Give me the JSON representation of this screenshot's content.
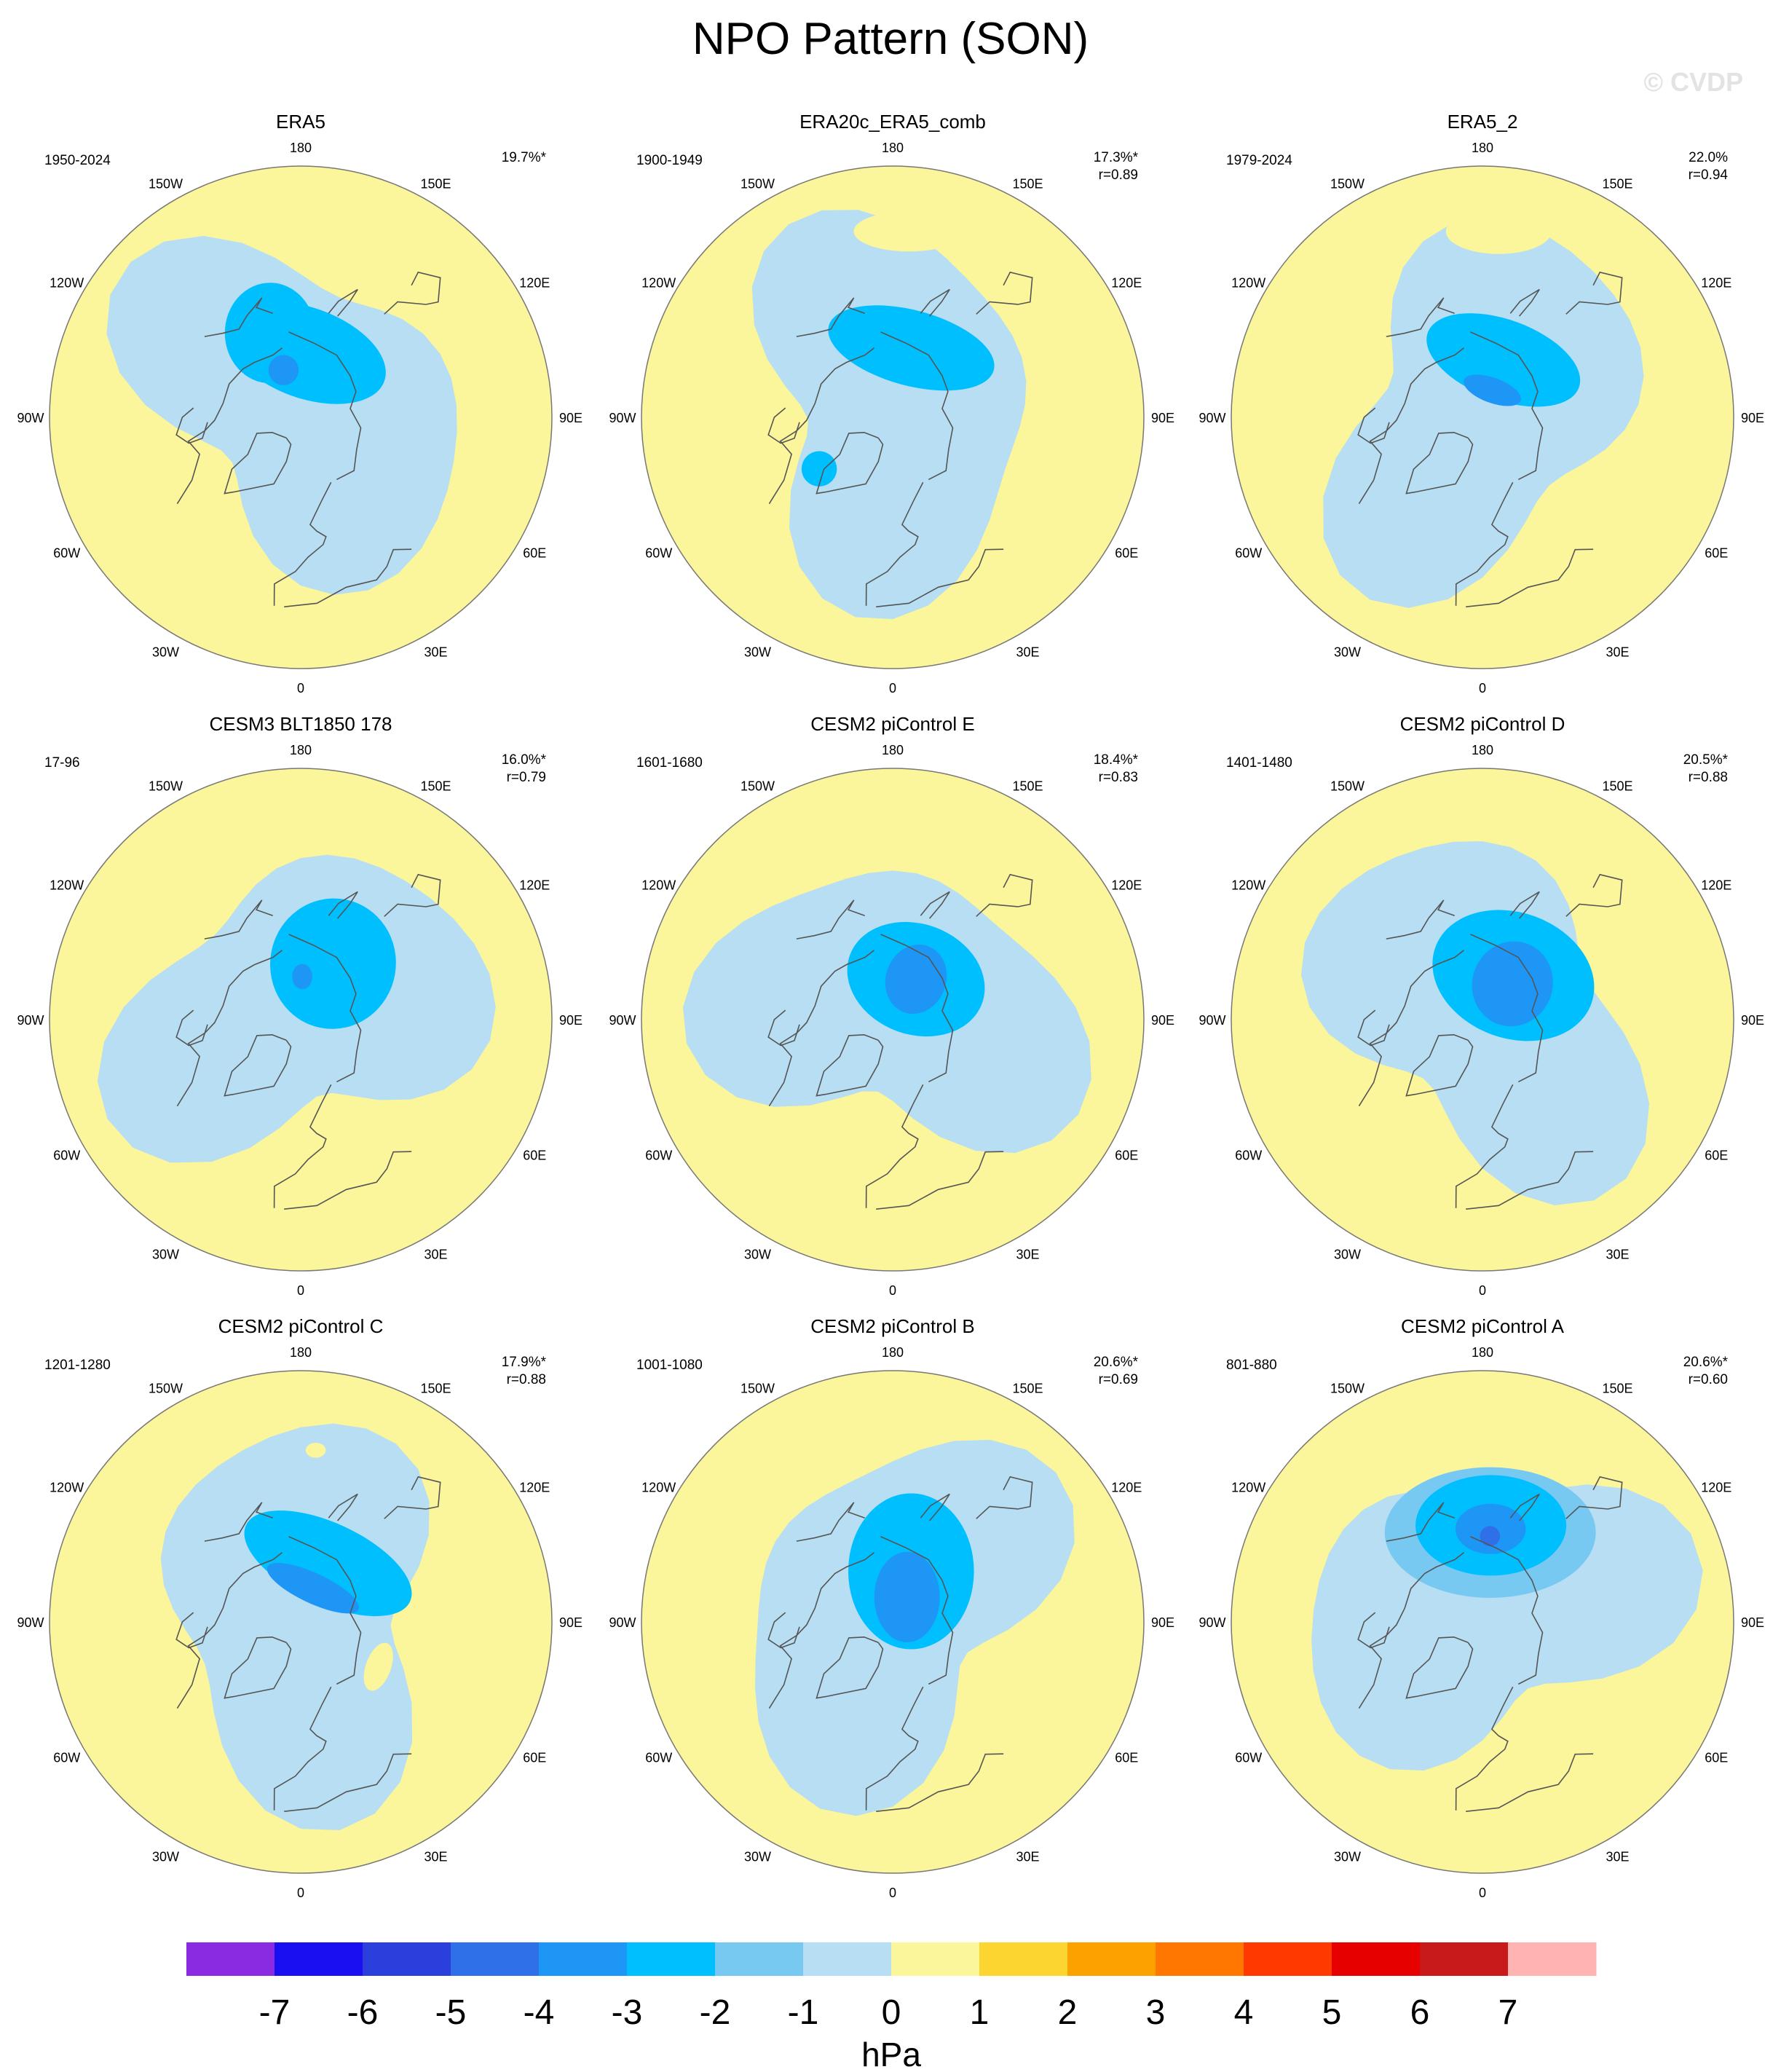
{
  "figure": {
    "title": "NPO Pattern (SON)",
    "watermark": "© CVDP"
  },
  "colors": {
    "ocean_fill": "#b7def2",
    "land_yellow": "#fbf59b",
    "coastline": "#555555",
    "outline": "#777777"
  },
  "longitude_labels": [
    "180",
    "150E",
    "120E",
    "90E",
    "60E",
    "30E",
    "0",
    "30W",
    "60W",
    "90W",
    "120W",
    "150W"
  ],
  "panels": [
    {
      "title": "ERA5",
      "period": "1950-2024",
      "pct": "19.7%*",
      "r": "",
      "blobs": [
        {
          "level": -2,
          "lat": 72,
          "lon": 175,
          "rx": 0.33,
          "ry": 0.18,
          "rot": 20
        },
        {
          "level": -2,
          "lat": 65,
          "lon": -160,
          "rx": 0.18,
          "ry": 0.2,
          "rot": 0
        },
        {
          "level": -3,
          "lat": 76,
          "lon": -160,
          "rx": 0.06,
          "ry": 0.06,
          "rot": 0
        },
        {
          "level": 1,
          "lat": 35,
          "lon": 175,
          "rx": 0.08,
          "ry": 0.04,
          "rot": 0
        }
      ]
    },
    {
      "title": "ERA20c_ERA5_comb",
      "period": "1900-1949",
      "pct": "17.3%*",
      "r": "r=0.89",
      "blobs": [
        {
          "level": -2,
          "lat": 70,
          "lon": 165,
          "rx": 0.34,
          "ry": 0.15,
          "rot": 15
        },
        {
          "level": -2,
          "lat": 65,
          "lon": -55,
          "rx": 0.07,
          "ry": 0.07,
          "rot": 0
        },
        {
          "level": 1,
          "lat": 38,
          "lon": 175,
          "rx": 0.22,
          "ry": 0.08,
          "rot": 0
        }
      ]
    },
    {
      "title": "ERA5_2",
      "period": "1979-2024",
      "pct": "22.0%",
      "r": "r=0.94",
      "blobs": [
        {
          "level": -2,
          "lat": 73,
          "lon": 160,
          "rx": 0.32,
          "ry": 0.16,
          "rot": 20
        },
        {
          "level": -3,
          "lat": 82,
          "lon": 160,
          "rx": 0.12,
          "ry": 0.05,
          "rot": 20
        },
        {
          "level": 1,
          "lat": 38,
          "lon": 175,
          "rx": 0.21,
          "ry": 0.09,
          "rot": 0
        }
      ]
    },
    {
      "title": "CESM3 BLT1850 178",
      "period": "17-96",
      "pct": "16.0%*",
      "r": "r=0.79",
      "blobs": [
        {
          "level": -2,
          "lat": 72,
          "lon": 150,
          "rx": 0.25,
          "ry": 0.26,
          "rot": 10
        },
        {
          "level": -3,
          "lat": 78,
          "lon": 178,
          "rx": 0.04,
          "ry": 0.05,
          "rot": 0
        }
      ]
    },
    {
      "title": "CESM2 piControl E",
      "period": "1601-1680",
      "pct": "18.4%*",
      "r": "r=0.83",
      "blobs": [
        {
          "level": -2,
          "lat": 77,
          "lon": 150,
          "rx": 0.28,
          "ry": 0.22,
          "rot": 20
        },
        {
          "level": -3,
          "lat": 77,
          "lon": 150,
          "rx": 0.12,
          "ry": 0.14,
          "rot": 20
        }
      ]
    },
    {
      "title": "CESM2 piControl D",
      "period": "1401-1480",
      "pct": "20.5%*",
      "r": "r=0.88",
      "blobs": [
        {
          "level": -2,
          "lat": 75,
          "lon": 145,
          "rx": 0.33,
          "ry": 0.25,
          "rot": 20
        },
        {
          "level": -3,
          "lat": 77,
          "lon": 140,
          "rx": 0.16,
          "ry": 0.17,
          "rot": 20
        }
      ]
    },
    {
      "title": "CESM2 piControl C",
      "period": "1201-1280",
      "pct": "17.9%*",
      "r": "r=0.88",
      "blobs": [
        {
          "level": -2,
          "lat": 72,
          "lon": 155,
          "rx": 0.36,
          "ry": 0.16,
          "rot": 25
        },
        {
          "level": -3,
          "lat": 80,
          "lon": 160,
          "rx": 0.2,
          "ry": 0.06,
          "rot": 25
        },
        {
          "level": 1,
          "lat": 42,
          "lon": 175,
          "rx": 0.04,
          "ry": 0.03,
          "rot": 0
        },
        {
          "level": 1,
          "lat": 65,
          "lon": 60,
          "rx": 0.05,
          "ry": 0.1,
          "rot": 20
        }
      ]
    },
    {
      "title": "CESM2 piControl B",
      "period": "1001-1080",
      "pct": "20.6%*",
      "r": "r=0.69",
      "blobs": [
        {
          "level": -2,
          "lat": 75,
          "lon": 160,
          "rx": 0.25,
          "ry": 0.31,
          "rot": 0
        },
        {
          "level": -3,
          "lat": 82,
          "lon": 150,
          "rx": 0.13,
          "ry": 0.18,
          "rot": 0
        }
      ]
    },
    {
      "title": "CESM2 piControl A",
      "period": "801-880",
      "pct": "20.6%*",
      "r": "r=0.60",
      "blobs": [
        {
          "level": -1,
          "lat": 65,
          "lon": 175,
          "rx": 0.42,
          "ry": 0.26,
          "rot": 0
        },
        {
          "level": -2,
          "lat": 63,
          "lon": 175,
          "rx": 0.3,
          "ry": 0.2,
          "rot": 0
        },
        {
          "level": -3,
          "lat": 64,
          "lon": 175,
          "rx": 0.14,
          "ry": 0.1,
          "rot": 0
        },
        {
          "level": -4,
          "lat": 66,
          "lon": 175,
          "rx": 0.04,
          "ry": 0.04,
          "rot": 0
        }
      ]
    }
  ],
  "colorbar": {
    "unit": "hPa",
    "labels": [
      "-7",
      "-6",
      "-5",
      "-4",
      "-3",
      "-2",
      "-1",
      "0",
      "1",
      "2",
      "3",
      "4",
      "5",
      "6",
      "7"
    ],
    "colors": [
      "#8a2be2",
      "#1a0ff0",
      "#2a3fdc",
      "#2f6fe8",
      "#1e96f5",
      "#00bfff",
      "#77c9f2",
      "#b7def2",
      "#fbf59b",
      "#fdd530",
      "#fba200",
      "#ff7700",
      "#ff3a00",
      "#e60000",
      "#c81a1a",
      "#ffb3b3"
    ]
  }
}
